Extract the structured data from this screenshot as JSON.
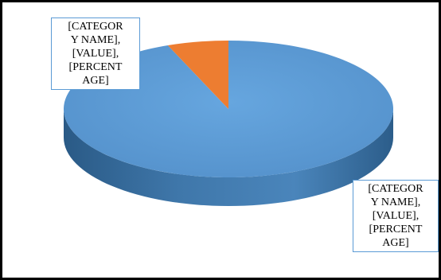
{
  "chart_data": {
    "type": "pie",
    "style": "3d",
    "title": "",
    "slices": [
      {
        "value": 94,
        "color": "#5b9bd5",
        "label_lines": [
          "[CATEGOR",
          "Y NAME],",
          "[VALUE],",
          "[PERCENT",
          "AGE]"
        ]
      },
      {
        "value": 6,
        "color": "#ed7d31",
        "label_lines": [
          "[CATEGOR",
          "Y NAME],",
          "[VALUE],",
          "[PERCENT",
          "AGE]"
        ]
      }
    ],
    "legend": "none"
  }
}
